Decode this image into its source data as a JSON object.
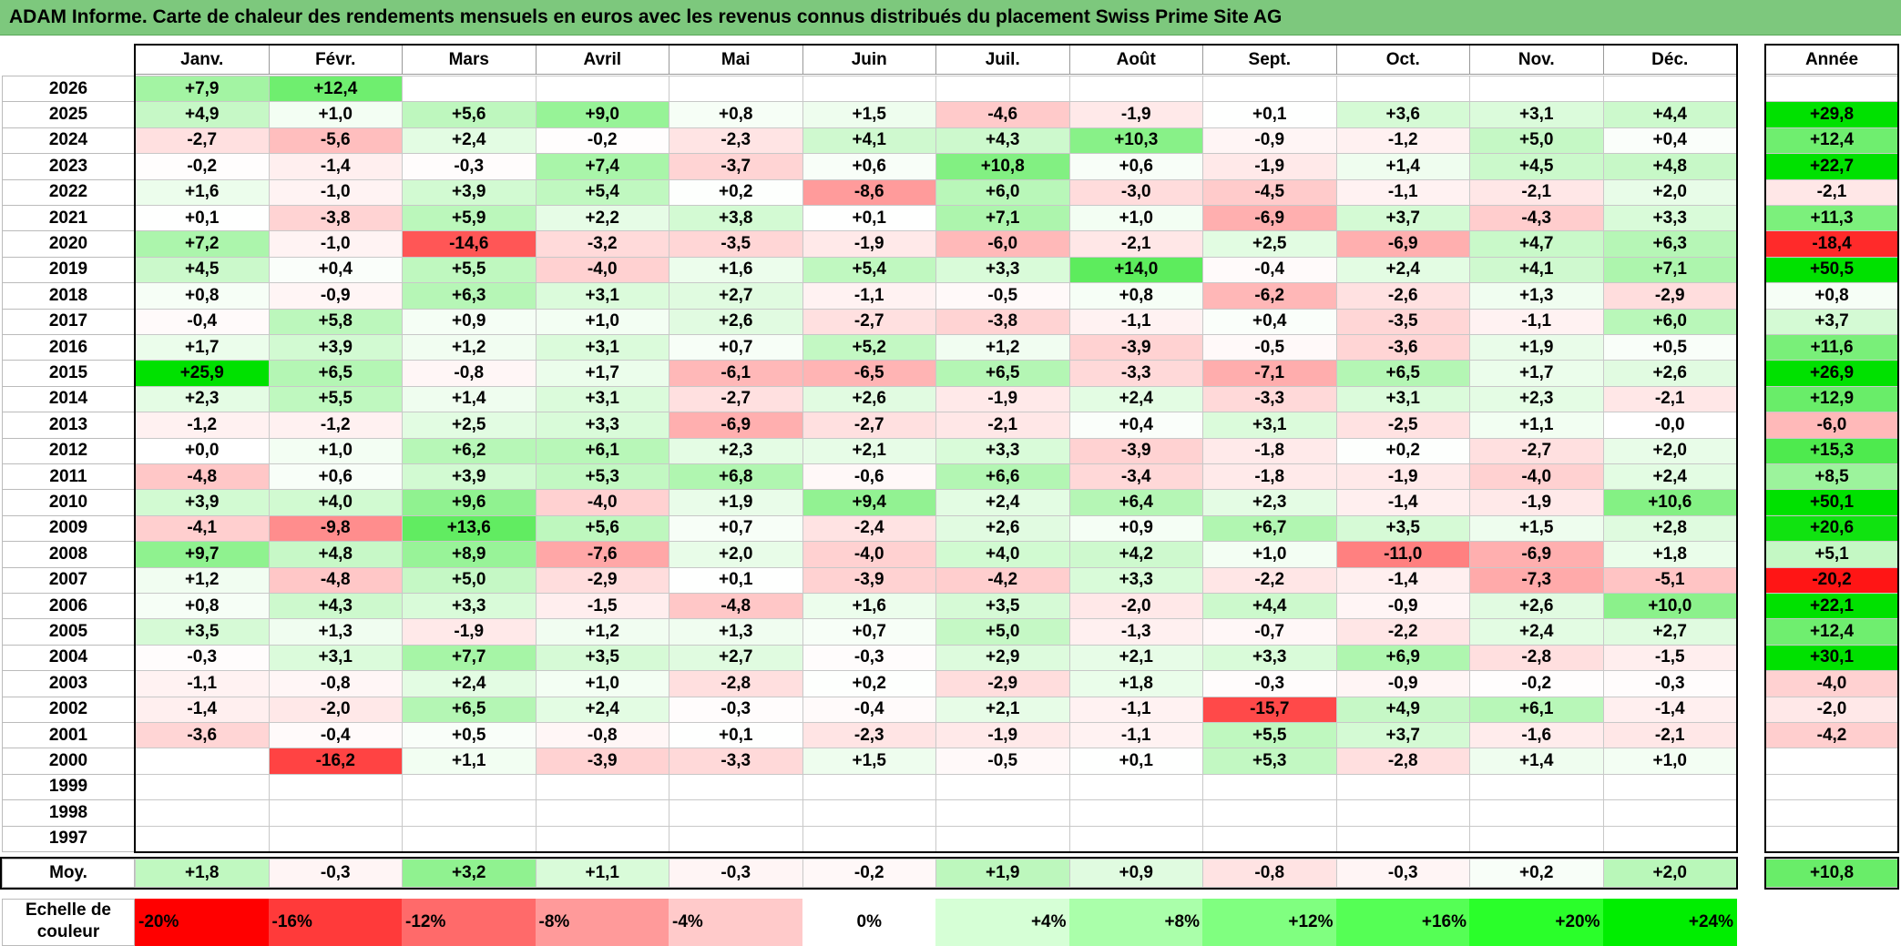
{
  "title": "ADAM Informe. Carte de chaleur des rendements mensuels en euros avec les revenus connus distribués du placement Swiss Prime Site AG",
  "chart_data": {
    "type": "heatmap",
    "title": "ADAM Informe. Carte de chaleur des rendements mensuels en euros avec les revenus connus distribués du placement Swiss Prime Site AG",
    "columns": [
      "Janv.",
      "Févr.",
      "Mars",
      "Avril",
      "Mai",
      "Juin",
      "Juil.",
      "Août",
      "Sept.",
      "Oct.",
      "Nov.",
      "Déc."
    ],
    "year_column_label": "Année",
    "rows": [
      {
        "year": "2026",
        "values": [
          "+7,9",
          "+12,4",
          "",
          "",
          "",
          "",
          "",
          "",
          "",
          "",
          "",
          ""
        ],
        "annual": ""
      },
      {
        "year": "2025",
        "values": [
          "+4,9",
          "+1,0",
          "+5,6",
          "+9,0",
          "+0,8",
          "+1,5",
          "-4,6",
          "-1,9",
          "+0,1",
          "+3,6",
          "+3,1",
          "+4,4"
        ],
        "annual": "+29,8"
      },
      {
        "year": "2024",
        "values": [
          "-2,7",
          "-5,6",
          "+2,4",
          "-0,2",
          "-2,3",
          "+4,1",
          "+4,3",
          "+10,3",
          "-0,9",
          "-1,2",
          "+5,0",
          "+0,4"
        ],
        "annual": "+12,4"
      },
      {
        "year": "2023",
        "values": [
          "-0,2",
          "-1,4",
          "-0,3",
          "+7,4",
          "-3,7",
          "+0,6",
          "+10,8",
          "+0,6",
          "-1,9",
          "+1,4",
          "+4,5",
          "+4,8"
        ],
        "annual": "+22,7"
      },
      {
        "year": "2022",
        "values": [
          "+1,6",
          "-1,0",
          "+3,9",
          "+5,4",
          "+0,2",
          "-8,6",
          "+6,0",
          "-3,0",
          "-4,5",
          "-1,1",
          "-2,1",
          "+2,0"
        ],
        "annual": "-2,1"
      },
      {
        "year": "2021",
        "values": [
          "+0,1",
          "-3,8",
          "+5,9",
          "+2,2",
          "+3,8",
          "+0,1",
          "+7,1",
          "+1,0",
          "-6,9",
          "+3,7",
          "-4,3",
          "+3,3"
        ],
        "annual": "+11,3"
      },
      {
        "year": "2020",
        "values": [
          "+7,2",
          "-1,0",
          "-14,6",
          "-3,2",
          "-3,5",
          "-1,9",
          "-6,0",
          "-2,1",
          "+2,5",
          "-6,9",
          "+4,7",
          "+6,3"
        ],
        "annual": "-18,4"
      },
      {
        "year": "2019",
        "values": [
          "+4,5",
          "+0,4",
          "+5,5",
          "-4,0",
          "+1,6",
          "+5,4",
          "+3,3",
          "+14,0",
          "-0,4",
          "+2,4",
          "+4,1",
          "+7,1"
        ],
        "annual": "+50,5"
      },
      {
        "year": "2018",
        "values": [
          "+0,8",
          "-0,9",
          "+6,3",
          "+3,1",
          "+2,7",
          "-1,1",
          "-0,5",
          "+0,8",
          "-6,2",
          "-2,6",
          "+1,3",
          "-2,9"
        ],
        "annual": "+0,8"
      },
      {
        "year": "2017",
        "values": [
          "-0,4",
          "+5,8",
          "+0,9",
          "+1,0",
          "+2,6",
          "-2,7",
          "-3,8",
          "-1,1",
          "+0,4",
          "-3,5",
          "-1,1",
          "+6,0"
        ],
        "annual": "+3,7"
      },
      {
        "year": "2016",
        "values": [
          "+1,7",
          "+3,9",
          "+1,2",
          "+3,1",
          "+0,7",
          "+5,2",
          "+1,2",
          "-3,9",
          "-0,5",
          "-3,6",
          "+1,9",
          "+0,5"
        ],
        "annual": "+11,6"
      },
      {
        "year": "2015",
        "values": [
          "+25,9",
          "+6,5",
          "-0,8",
          "+1,7",
          "-6,1",
          "-6,5",
          "+6,5",
          "-3,3",
          "-7,1",
          "+6,5",
          "+1,7",
          "+2,6"
        ],
        "annual": "+26,9"
      },
      {
        "year": "2014",
        "values": [
          "+2,3",
          "+5,5",
          "+1,4",
          "+3,1",
          "-2,7",
          "+2,6",
          "-1,9",
          "+2,4",
          "-3,3",
          "+3,1",
          "+2,3",
          "-2,1"
        ],
        "annual": "+12,9"
      },
      {
        "year": "2013",
        "values": [
          "-1,2",
          "-1,2",
          "+2,5",
          "+3,3",
          "-6,9",
          "-2,7",
          "-2,1",
          "+0,4",
          "+3,1",
          "-2,5",
          "+1,1",
          "-0,0"
        ],
        "annual": "-6,0"
      },
      {
        "year": "2012",
        "values": [
          "+0,0",
          "+1,0",
          "+6,2",
          "+6,1",
          "+2,3",
          "+2,1",
          "+3,3",
          "-3,9",
          "-1,8",
          "+0,2",
          "-2,7",
          "+2,0"
        ],
        "annual": "+15,3"
      },
      {
        "year": "2011",
        "values": [
          "-4,8",
          "+0,6",
          "+3,9",
          "+5,3",
          "+6,8",
          "-0,6",
          "+6,6",
          "-3,4",
          "-1,8",
          "-1,9",
          "-4,0",
          "+2,4"
        ],
        "annual": "+8,5"
      },
      {
        "year": "2010",
        "values": [
          "+3,9",
          "+4,0",
          "+9,6",
          "-4,0",
          "+1,9",
          "+9,4",
          "+2,4",
          "+6,4",
          "+2,3",
          "-1,4",
          "-1,9",
          "+10,6"
        ],
        "annual": "+50,1"
      },
      {
        "year": "2009",
        "values": [
          "-4,1",
          "-9,8",
          "+13,6",
          "+5,6",
          "+0,7",
          "-2,4",
          "+2,6",
          "+0,9",
          "+6,7",
          "+3,5",
          "+1,5",
          "+2,8"
        ],
        "annual": "+20,6"
      },
      {
        "year": "2008",
        "values": [
          "+9,7",
          "+4,8",
          "+8,9",
          "-7,6",
          "+2,0",
          "-4,0",
          "+4,0",
          "+4,2",
          "+1,0",
          "-11,0",
          "-6,9",
          "+1,8"
        ],
        "annual": "+5,1"
      },
      {
        "year": "2007",
        "values": [
          "+1,2",
          "-4,8",
          "+5,0",
          "-2,9",
          "+0,1",
          "-3,9",
          "-4,2",
          "+3,3",
          "-2,2",
          "-1,4",
          "-7,3",
          "-5,1"
        ],
        "annual": "-20,2"
      },
      {
        "year": "2006",
        "values": [
          "+0,8",
          "+4,3",
          "+3,3",
          "-1,5",
          "-4,8",
          "+1,6",
          "+3,5",
          "-2,0",
          "+4,4",
          "-0,9",
          "+2,6",
          "+10,0"
        ],
        "annual": "+22,1"
      },
      {
        "year": "2005",
        "values": [
          "+3,5",
          "+1,3",
          "-1,9",
          "+1,2",
          "+1,3",
          "+0,7",
          "+5,0",
          "-1,3",
          "-0,7",
          "-2,2",
          "+2,4",
          "+2,7"
        ],
        "annual": "+12,4"
      },
      {
        "year": "2004",
        "values": [
          "-0,3",
          "+3,1",
          "+7,7",
          "+3,5",
          "+2,7",
          "-0,3",
          "+2,9",
          "+2,1",
          "+3,3",
          "+6,9",
          "-2,8",
          "-1,5"
        ],
        "annual": "+30,1"
      },
      {
        "year": "2003",
        "values": [
          "-1,1",
          "-0,8",
          "+2,4",
          "+1,0",
          "-2,8",
          "+0,2",
          "-2,9",
          "+1,8",
          "-0,3",
          "-0,9",
          "-0,2",
          "-0,3"
        ],
        "annual": "-4,0"
      },
      {
        "year": "2002",
        "values": [
          "-1,4",
          "-2,0",
          "+6,5",
          "+2,4",
          "-0,3",
          "-0,4",
          "+2,1",
          "-1,1",
          "-15,7",
          "+4,9",
          "+6,1",
          "-1,4"
        ],
        "annual": "-2,0"
      },
      {
        "year": "2001",
        "values": [
          "-3,6",
          "-0,4",
          "+0,5",
          "-0,8",
          "+0,1",
          "-2,3",
          "-1,9",
          "-1,1",
          "+5,5",
          "+3,7",
          "-1,6",
          "-2,1"
        ],
        "annual": "-4,2"
      },
      {
        "year": "2000",
        "values": [
          "",
          "-16,2",
          "+1,1",
          "-3,9",
          "-3,3",
          "+1,5",
          "-0,5",
          "+0,1",
          "+5,3",
          "-2,8",
          "+1,4",
          "+1,0"
        ],
        "annual": ""
      },
      {
        "year": "1999",
        "values": [
          "",
          "",
          "",
          "",
          "",
          "",
          "",
          "",
          "",
          "",
          "",
          ""
        ],
        "annual": ""
      },
      {
        "year": "1998",
        "values": [
          "",
          "",
          "",
          "",
          "",
          "",
          "",
          "",
          "",
          "",
          "",
          ""
        ],
        "annual": ""
      },
      {
        "year": "1997",
        "values": [
          "",
          "",
          "",
          "",
          "",
          "",
          "",
          "",
          "",
          "",
          "",
          ""
        ],
        "annual": ""
      }
    ],
    "average": {
      "label": "Moy.",
      "values": [
        "+1,8",
        "-0,3",
        "+3,2",
        "+1,1",
        "-0,3",
        "-0,2",
        "+1,9",
        "+0,9",
        "-0,8",
        "-0,3",
        "+0,2",
        "+2,0"
      ],
      "annual": "+10,8"
    },
    "color_scale": {
      "label_line1": "Echelle de",
      "label_line2": "couleur",
      "steps": [
        {
          "label": "-20%",
          "color": "#ff0000"
        },
        {
          "label": "-16%",
          "color": "#ff3a3a"
        },
        {
          "label": "-12%",
          "color": "#ff6a6a"
        },
        {
          "label": "-8%",
          "color": "#ff9a9a"
        },
        {
          "label": "-4%",
          "color": "#ffcaca"
        },
        {
          "label": "0%",
          "color": "#ffffff"
        },
        {
          "label": "+4%",
          "color": "#d6ffd6"
        },
        {
          "label": "+8%",
          "color": "#aaffaa"
        },
        {
          "label": "+12%",
          "color": "#80ff80"
        },
        {
          "label": "+16%",
          "color": "#55ff55"
        },
        {
          "label": "+20%",
          "color": "#2aff2a"
        },
        {
          "label": "+24%",
          "color": "#00ee00"
        }
      ]
    }
  }
}
